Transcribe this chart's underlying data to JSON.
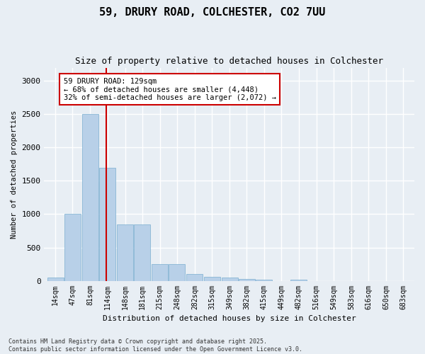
{
  "title1": "59, DRURY ROAD, COLCHESTER, CO2 7UU",
  "title2": "Size of property relative to detached houses in Colchester",
  "xlabel": "Distribution of detached houses by size in Colchester",
  "ylabel": "Number of detached properties",
  "bin_labels": [
    "14sqm",
    "47sqm",
    "81sqm",
    "114sqm",
    "148sqm",
    "181sqm",
    "215sqm",
    "248sqm",
    "282sqm",
    "315sqm",
    "349sqm",
    "382sqm",
    "415sqm",
    "449sqm",
    "482sqm",
    "516sqm",
    "549sqm",
    "583sqm",
    "616sqm",
    "650sqm",
    "683sqm"
  ],
  "bin_edges": [
    14,
    47,
    81,
    114,
    148,
    181,
    215,
    248,
    282,
    315,
    349,
    382,
    415,
    449,
    482,
    516,
    549,
    583,
    616,
    650,
    683,
    716
  ],
  "values": [
    50,
    1000,
    2500,
    1700,
    850,
    850,
    250,
    250,
    100,
    55,
    50,
    30,
    20,
    0,
    20,
    0,
    0,
    0,
    0,
    0,
    0
  ],
  "bar_color": "#b8d0e8",
  "bar_edge_color": "#7aaed0",
  "vline_x": 129,
  "vline_color": "#cc0000",
  "annotation_text": "59 DRURY ROAD: 129sqm\n← 68% of detached houses are smaller (4,448)\n32% of semi-detached houses are larger (2,072) →",
  "annotation_box_color": "#ffffff",
  "annotation_box_edge": "#cc0000",
  "ylim": [
    0,
    3200
  ],
  "yticks": [
    0,
    500,
    1000,
    1500,
    2000,
    2500,
    3000
  ],
  "background_color": "#e8eef4",
  "grid_color": "#ffffff",
  "footnote1": "Contains HM Land Registry data © Crown copyright and database right 2025.",
  "footnote2": "Contains public sector information licensed under the Open Government Licence v3.0."
}
